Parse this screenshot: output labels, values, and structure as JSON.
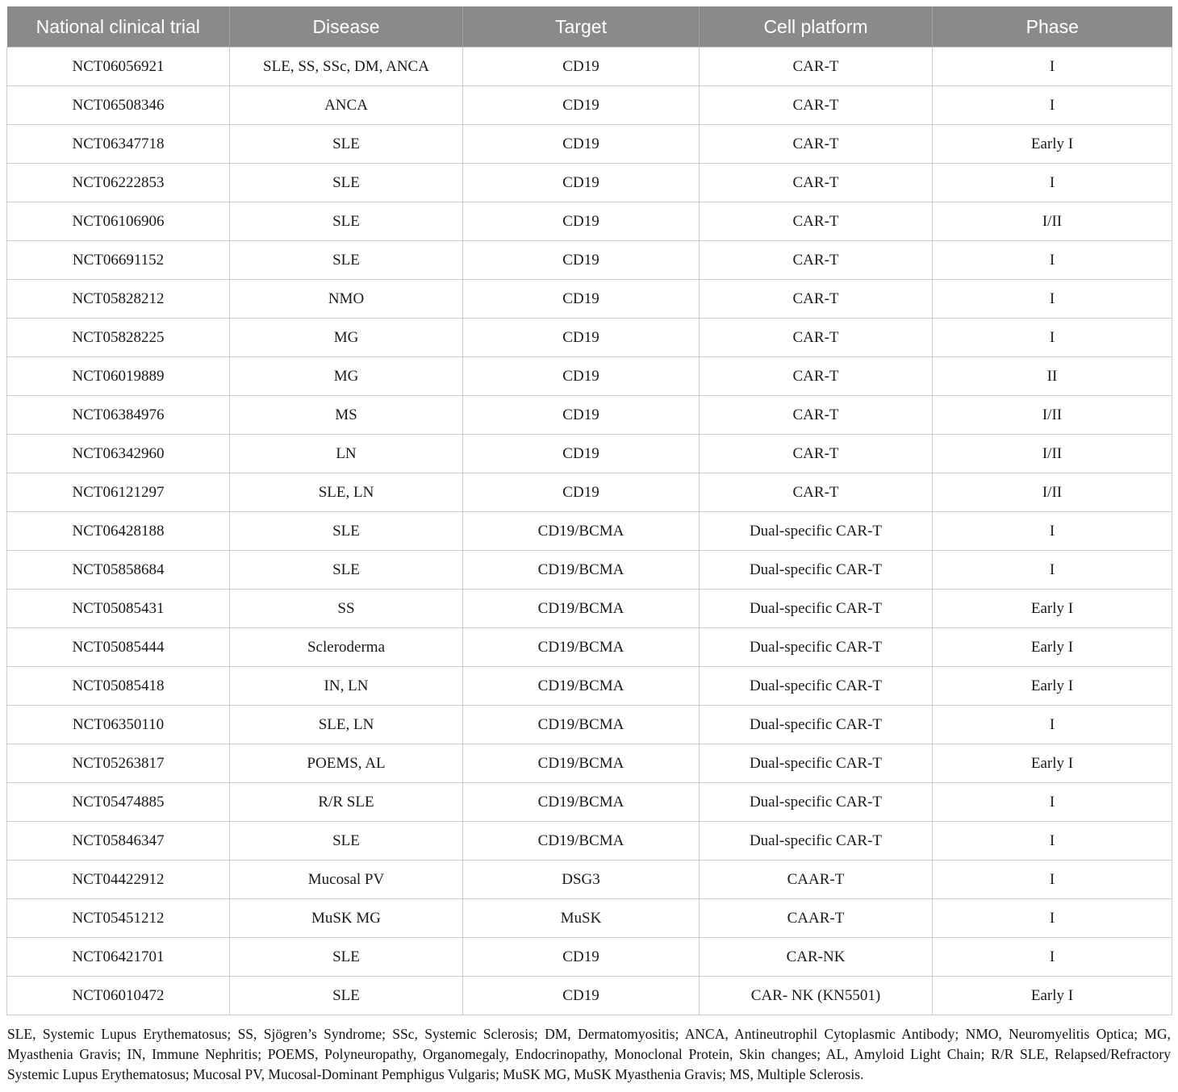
{
  "table": {
    "columns": [
      "National clinical trial",
      "Disease",
      "Target",
      "Cell platform",
      "Phase"
    ],
    "rows": [
      [
        "NCT06056921",
        "SLE, SS, SSc, DM, ANCA",
        "CD19",
        "CAR-T",
        "I"
      ],
      [
        "NCT06508346",
        "ANCA",
        "CD19",
        "CAR-T",
        "I"
      ],
      [
        "NCT06347718",
        "SLE",
        "CD19",
        "CAR-T",
        "Early I"
      ],
      [
        "NCT06222853",
        "SLE",
        "CD19",
        "CAR-T",
        "I"
      ],
      [
        "NCT06106906",
        "SLE",
        "CD19",
        "CAR-T",
        "I/II"
      ],
      [
        "NCT06691152",
        "SLE",
        "CD19",
        "CAR-T",
        "I"
      ],
      [
        "NCT05828212",
        "NMO",
        "CD19",
        "CAR-T",
        "I"
      ],
      [
        "NCT05828225",
        "MG",
        "CD19",
        "CAR-T",
        "I"
      ],
      [
        "NCT06019889",
        "MG",
        "CD19",
        "CAR-T",
        "II"
      ],
      [
        "NCT06384976",
        "MS",
        "CD19",
        "CAR-T",
        "I/II"
      ],
      [
        "NCT06342960",
        "LN",
        "CD19",
        "CAR-T",
        "I/II"
      ],
      [
        "NCT06121297",
        "SLE, LN",
        "CD19",
        "CAR-T",
        "I/II"
      ],
      [
        "NCT06428188",
        "SLE",
        "CD19/BCMA",
        "Dual-specific CAR-T",
        "I"
      ],
      [
        "NCT05858684",
        "SLE",
        "CD19/BCMA",
        "Dual-specific CAR-T",
        "I"
      ],
      [
        "NCT05085431",
        "SS",
        "CD19/BCMA",
        "Dual-specific CAR-T",
        "Early I"
      ],
      [
        "NCT05085444",
        "Scleroderma",
        "CD19/BCMA",
        "Dual-specific CAR-T",
        "Early I"
      ],
      [
        "NCT05085418",
        "IN, LN",
        "CD19/BCMA",
        "Dual-specific CAR-T",
        "Early I"
      ],
      [
        "NCT06350110",
        "SLE, LN",
        "CD19/BCMA",
        "Dual-specific CAR-T",
        "I"
      ],
      [
        "NCT05263817",
        "POEMS, AL",
        "CD19/BCMA",
        "Dual-specific CAR-T",
        "Early I"
      ],
      [
        "NCT05474885",
        "R/R SLE",
        "CD19/BCMA",
        "Dual-specific CAR-T",
        "I"
      ],
      [
        "NCT05846347",
        "SLE",
        "CD19/BCMA",
        "Dual-specific CAR-T",
        "I"
      ],
      [
        "NCT04422912",
        "Mucosal PV",
        "DSG3",
        "CAAR-T",
        "I"
      ],
      [
        "NCT05451212",
        "MuSK MG",
        "MuSK",
        "CAAR-T",
        "I"
      ],
      [
        "NCT06421701",
        "SLE",
        "CD19",
        "CAR-NK",
        "I"
      ],
      [
        "NCT06010472",
        "SLE",
        "CD19",
        "CAR- NK (KN5501)",
        "Early I"
      ]
    ]
  },
  "footnote": "SLE, Systemic Lupus Erythematosus; SS, Sjögren’s Syndrome; SSc, Systemic Sclerosis; DM, Dermatomyositis; ANCA, Antineutrophil Cytoplasmic Antibody; NMO, Neuromyelitis Optica; MG, Myasthenia Gravis; IN, Immune Nephritis; POEMS, Polyneuropathy, Organomegaly, Endocrinopathy, Monoclonal Protein, Skin changes; AL, Amyloid Light Chain; R/R SLE, Relapsed/Refractory Systemic Lupus Erythematosus; Mucosal PV, Mucosal-Dominant Pemphigus Vulgaris; MuSK MG, MuSK Myasthenia Gravis; MS, Multiple Sclerosis.",
  "colors": {
    "header_bg": "#8a8a8a",
    "header_text": "#ffffff",
    "cell_border": "#cccccc",
    "body_text": "#1a1a1a"
  }
}
